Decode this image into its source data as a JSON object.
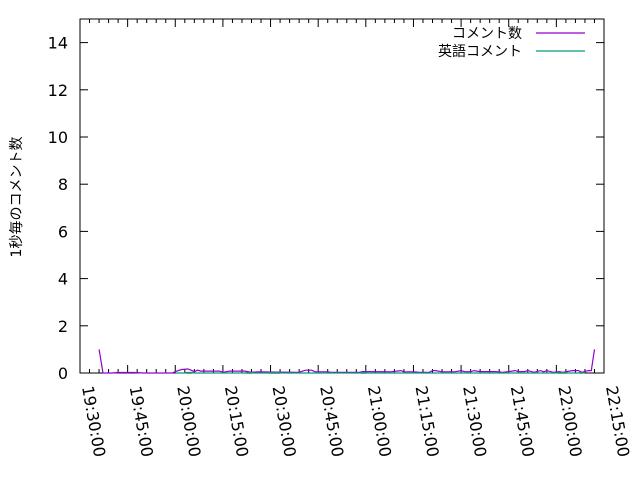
{
  "chart_data": {
    "type": "line",
    "title": "",
    "xlabel": "",
    "ylabel": "1秒毎のコメント数",
    "xlim": [
      "19:30:00",
      "22:15:00"
    ],
    "ylim": [
      0,
      15
    ],
    "xticks": [
      "19:30:00",
      "19:45:00",
      "20:00:00",
      "20:15:00",
      "20:30:00",
      "20:45:00",
      "21:00:00",
      "21:15:00",
      "21:30:00",
      "21:45:00",
      "22:00:00",
      "22:15:00"
    ],
    "yticks": [
      0,
      2,
      4,
      6,
      8,
      10,
      12,
      14
    ],
    "grid": false,
    "legend_position": "top-right",
    "series": [
      {
        "name": "コメント数",
        "color": "#9400d3",
        "points": [
          [
            "19:36:00",
            1.0
          ],
          [
            "19:37:15",
            0
          ],
          [
            "19:40:00",
            0
          ],
          [
            "19:42:00",
            0.02
          ],
          [
            "19:47:00",
            0.02
          ],
          [
            "19:50:00",
            0
          ],
          [
            "19:59:00",
            0
          ],
          [
            "20:00:30",
            0.08
          ],
          [
            "20:02:00",
            0.15
          ],
          [
            "20:04:00",
            0.17
          ],
          [
            "20:05:00",
            0.12
          ],
          [
            "20:06:00",
            0.05
          ],
          [
            "20:07:00",
            0.12
          ],
          [
            "20:08:00",
            0.08
          ],
          [
            "20:14:00",
            0.08
          ],
          [
            "20:15:00",
            0.03
          ],
          [
            "20:17:00",
            0.08
          ],
          [
            "20:22:00",
            0.08
          ],
          [
            "20:24:00",
            0.03
          ],
          [
            "20:26:00",
            0.05
          ],
          [
            "20:39:00",
            0.03
          ],
          [
            "20:41:00",
            0.12
          ],
          [
            "20:43:00",
            0.12
          ],
          [
            "20:44:00",
            0.05
          ],
          [
            "20:48:00",
            0.05
          ],
          [
            "20:49:00",
            0.03
          ],
          [
            "20:58:00",
            0.03
          ],
          [
            "20:59:00",
            0.06
          ],
          [
            "21:08:00",
            0.05
          ],
          [
            "21:11:00",
            0.1
          ],
          [
            "21:12:00",
            0.05
          ],
          [
            "21:15:00",
            0.05
          ],
          [
            "21:17:00",
            0.03
          ],
          [
            "21:20:00",
            0.03
          ],
          [
            "21:21:00",
            0.1
          ],
          [
            "21:22:00",
            0.1
          ],
          [
            "21:24:00",
            0.05
          ],
          [
            "21:28:00",
            0.05
          ],
          [
            "21:30:00",
            0.1
          ],
          [
            "21:31:00",
            0.06
          ],
          [
            "21:33:00",
            0.05
          ],
          [
            "21:34:00",
            0.1
          ],
          [
            "21:36:00",
            0.06
          ],
          [
            "21:41:00",
            0.06
          ],
          [
            "21:43:00",
            0.03
          ],
          [
            "21:45:00",
            0.06
          ],
          [
            "21:47:00",
            0.1
          ],
          [
            "21:48:00",
            0.06
          ],
          [
            "21:50:00",
            0.06
          ],
          [
            "21:51:00",
            0.1
          ],
          [
            "21:53:00",
            0.03
          ],
          [
            "21:55:00",
            0.1
          ],
          [
            "21:56:00",
            0.05
          ],
          [
            "21:57:00",
            0.1
          ],
          [
            "21:59:00",
            0.03
          ],
          [
            "22:01:00",
            0.06
          ],
          [
            "22:02:00",
            0.03
          ],
          [
            "22:05:00",
            0.1
          ],
          [
            "22:07:00",
            0.1
          ],
          [
            "22:08:00",
            0.03
          ],
          [
            "22:10:00",
            0.1
          ],
          [
            "22:11:00",
            0.1
          ],
          [
            "22:12:00",
            1.0
          ]
        ]
      },
      {
        "name": "英語コメント",
        "color": "#009e73",
        "points": [
          [
            "20:00:00",
            0
          ],
          [
            "20:03:00",
            0
          ],
          [
            "20:03:30",
            0.02
          ],
          [
            "20:05:00",
            0.02
          ],
          [
            "20:06:00",
            0
          ],
          [
            "20:22:00",
            0
          ],
          [
            "20:22:30",
            0.02
          ],
          [
            "20:24:00",
            0.02
          ],
          [
            "20:25:00",
            0
          ],
          [
            "20:29:00",
            0
          ],
          [
            "20:29:30",
            0.02
          ],
          [
            "20:33:00",
            0.02
          ],
          [
            "20:34:00",
            0
          ],
          [
            "20:58:00",
            0
          ],
          [
            "20:58:30",
            0.02
          ],
          [
            "21:00:00",
            0.02
          ],
          [
            "21:01:00",
            0
          ],
          [
            "22:00:00",
            0
          ],
          [
            "22:00:30",
            0.02
          ],
          [
            "22:03:00",
            0.02
          ],
          [
            "22:04:00",
            0
          ],
          [
            "22:07:00",
            0
          ],
          [
            "22:07:30",
            0.02
          ],
          [
            "22:08:00",
            0.02
          ],
          [
            "22:09:00",
            0
          ]
        ]
      }
    ]
  }
}
